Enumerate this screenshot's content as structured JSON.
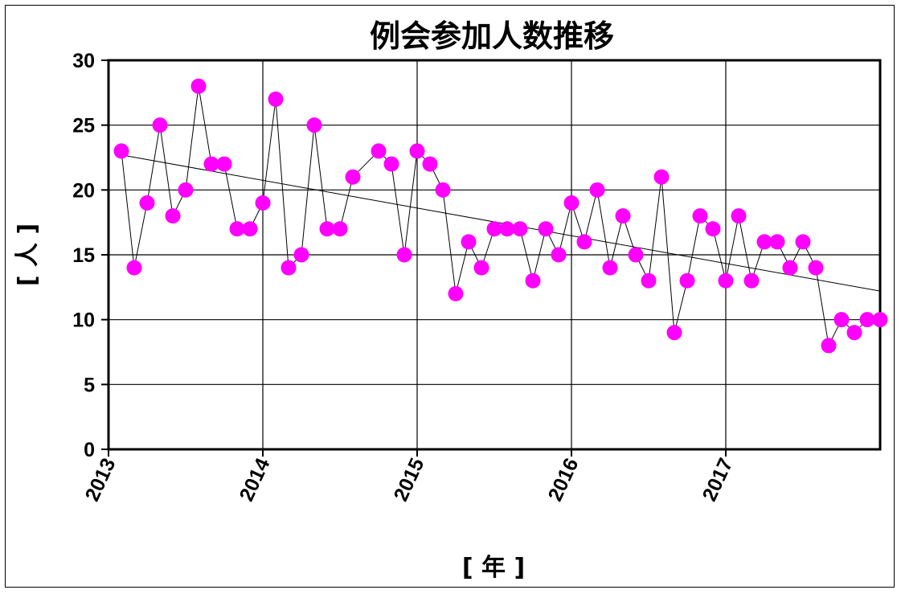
{
  "chart_data": {
    "type": "line",
    "title": "例会参加人数推移",
    "xlabel": "[ 年 ]",
    "ylabel": "[ 人 ]",
    "ylim": [
      0,
      30
    ],
    "y_ticks": [
      "0",
      "5",
      "10",
      "15",
      "20",
      "25",
      "30"
    ],
    "x_ticks": [
      "2013",
      "2014",
      "2015",
      "2016",
      "2017"
    ],
    "xlim_years": [
      2013,
      2018
    ],
    "grid": true,
    "legend": "none",
    "colors": {
      "marker": "#ff00ff",
      "line": "#000000",
      "trend": "#000000"
    },
    "series": [
      {
        "x": [
          "2013-02",
          "2013-03",
          "2013-04",
          "2013-05",
          "2013-06",
          "2013-07",
          "2013-08",
          "2013-09",
          "2013-10",
          "2013-11",
          "2013-12",
          "2014-01",
          "2014-02",
          "2014-03",
          "2014-04",
          "2014-05",
          "2014-06",
          "2014-07",
          "2014-08",
          "2014-10",
          "2014-11",
          "2014-12",
          "2015-01",
          "2015-02",
          "2015-03",
          "2015-04",
          "2015-05",
          "2015-06",
          "2015-07",
          "2015-08",
          "2015-09",
          "2015-10",
          "2015-11",
          "2015-12",
          "2016-01",
          "2016-02",
          "2016-03",
          "2016-04",
          "2016-05",
          "2016-06",
          "2016-07",
          "2016-08",
          "2016-09",
          "2016-10",
          "2016-11",
          "2016-12",
          "2017-01",
          "2017-02",
          "2017-03",
          "2017-04",
          "2017-05",
          "2017-06",
          "2017-07",
          "2017-08",
          "2017-09",
          "2017-10",
          "2017-11",
          "2017-12",
          "2018-01"
        ],
        "values": [
          23,
          14,
          19,
          25,
          18,
          20,
          28,
          22,
          22,
          17,
          17,
          19,
          27,
          14,
          15,
          25,
          17,
          17,
          21,
          23,
          22,
          15,
          23,
          22,
          20,
          12,
          16,
          14,
          17,
          17,
          17,
          13,
          17,
          15,
          19,
          16,
          20,
          14,
          18,
          15,
          13,
          21,
          9,
          13,
          18,
          17,
          13,
          18,
          13,
          16,
          16,
          14,
          16,
          14,
          8,
          10,
          9,
          10,
          10
        ]
      }
    ],
    "trendline": {
      "type": "linear",
      "start": 22.7,
      "end": 12.2
    }
  }
}
